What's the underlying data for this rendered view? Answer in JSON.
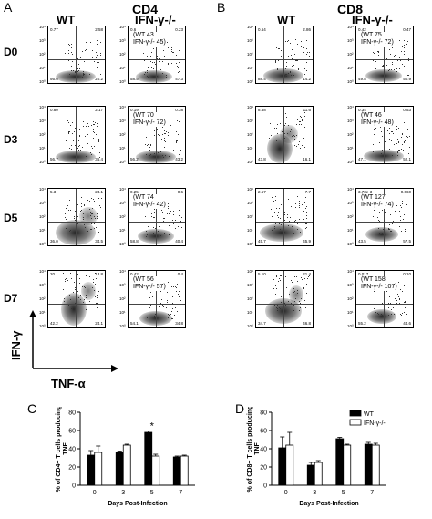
{
  "panel_labels": [
    "A",
    "B",
    "C",
    "D"
  ],
  "cd4": {
    "title": "CD4",
    "wt": "WT",
    "ko": "IFN-γ-/-",
    "rows": [
      {
        "day": "D0",
        "wt_q": [
          "0.77",
          "2.58",
          "95.6",
          "20.2"
        ],
        "ko_q": [
          "0.6",
          "0.23",
          "58.5",
          "47.3"
        ],
        "ann": "(WT 43\nIFN-γ-/- 45)"
      },
      {
        "day": "D3",
        "wt_q": [
          "0.80",
          "2.17",
          "56.7",
          "36.4"
        ],
        "ko_q": [
          "0.19",
          "0.38",
          "56.2",
          "43.2"
        ],
        "ann": "(WT 70\nIFN-γ-/- 72)"
      },
      {
        "day": "D5",
        "wt_q": [
          "5.3",
          "24.1",
          "36.0",
          "34.5"
        ],
        "ko_q": [
          "0.25",
          "0.6",
          "58.8",
          "40.4"
        ],
        "ann": "(WT 74\nIFN-γ-/- 42)"
      },
      {
        "day": "D7",
        "wt_q": [
          "20",
          "13.8",
          "42.2",
          "24.1"
        ],
        "ko_q": [
          "0.42",
          "0.4",
          "54.1",
          "34.8"
        ],
        "ann": "(WT 56\nIFN-γ-/- 57)"
      }
    ]
  },
  "cd8": {
    "title": "CD8",
    "wt": "WT",
    "ko": "IFN-γ-/-",
    "rows": [
      {
        "wt_q": [
          "0.64",
          "2.86",
          "88.4",
          "14.2"
        ],
        "ko_q": [
          "0.42",
          "0.47",
          "49.8",
          "50.9"
        ],
        "ann": "(WT 75\nIFN-γ-/- 72)"
      },
      {
        "wt_q": [
          "8.68",
          "11.6",
          "43.8",
          "16.1"
        ],
        "ko_q": [
          "0.34",
          "0.53",
          "47.1",
          "52.1"
        ],
        "ann": "(WT 46\nIFN-γ-/- 48)"
      },
      {
        "wt_q": [
          "2.57",
          "7.7",
          "45.7",
          "45.9"
        ],
        "ko_q": [
          "3.73e-3",
          "0.060",
          "43.5",
          "57.5"
        ],
        "ann": "(WT 127\nIFN-γ-/- 74)"
      },
      {
        "wt_q": [
          "5.10",
          "21.4",
          "34.7",
          "46.8"
        ],
        "ko_q": [
          "0.017",
          "0.10",
          "55.2",
          "44.6"
        ],
        "ann": "(WT 158\nIFN-γ-/- 107)"
      }
    ]
  },
  "axis_y_label": "IFN-γ",
  "axis_x_label": "TNF-α",
  "flow_tick_labels": [
    "10⁰",
    "10¹",
    "10²",
    "10³",
    "10⁴"
  ],
  "colors": {
    "wt": "#000000",
    "ko": "#ffffff"
  },
  "chart_data": [
    {
      "panel": "C",
      "type": "bar",
      "categories": [
        "0",
        "3",
        "5",
        "7"
      ],
      "series": [
        {
          "name": "WT",
          "values": [
            33,
            36,
            58,
            31
          ],
          "errors": [
            5,
            1.5,
            1.5,
            1
          ]
        },
        {
          "name": "IFN-γ-/-",
          "values": [
            36,
            44,
            32,
            32
          ],
          "errors": [
            7,
            1,
            2,
            1
          ]
        }
      ],
      "xlabel": "Days Post-Infection",
      "ylabel": "% of CD4+ T cells producing TNF",
      "ylim": [
        0,
        80
      ],
      "yticks": [
        "0",
        "20",
        "40",
        "60",
        "80"
      ],
      "annotation": "*"
    },
    {
      "panel": "D",
      "type": "bar",
      "categories": [
        "0",
        "3",
        "5",
        "7"
      ],
      "series": [
        {
          "name": "WT",
          "values": [
            41,
            22,
            51,
            45
          ],
          "errors": [
            12,
            3,
            1.5,
            2
          ]
        },
        {
          "name": "IFN-γ-/-",
          "values": [
            44,
            25,
            44,
            44
          ],
          "errors": [
            14,
            2,
            1,
            2
          ]
        }
      ],
      "xlabel": "Days Post-Infection",
      "ylabel": "% of CD8+ T cells producing TNF",
      "ylim": [
        0,
        80
      ],
      "yticks": [
        "0",
        "20",
        "40",
        "60",
        "80"
      ],
      "legend": [
        "WT",
        "IFN-γ-/-"
      ]
    }
  ]
}
